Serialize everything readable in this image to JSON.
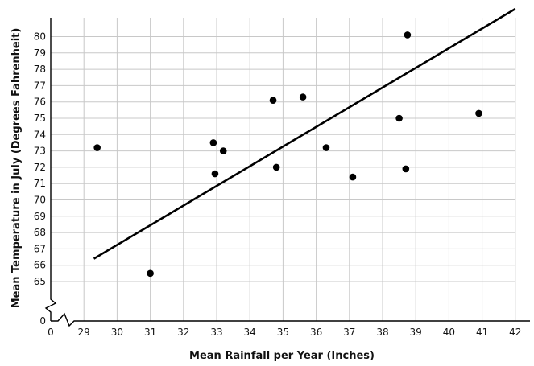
{
  "chart_data": {
    "type": "scatter",
    "title": "",
    "xlabel": "Mean Rainfall per Year (Inches)",
    "ylabel": "Mean Temperature in July (Degrees Fahrenheit)",
    "x_ticks": [
      "0",
      "29",
      "30",
      "31",
      "32",
      "33",
      "34",
      "35",
      "36",
      "37",
      "38",
      "39",
      "40",
      "41",
      "42"
    ],
    "y_ticks": [
      "0",
      "65",
      "66",
      "67",
      "68",
      "69",
      "70",
      "71",
      "72",
      "73",
      "74",
      "75",
      "76",
      "77",
      "78",
      "79",
      "80"
    ],
    "xlim": [
      29,
      42
    ],
    "ylim": [
      65,
      81
    ],
    "axis_breaks": [
      "x",
      "y"
    ],
    "grid": true,
    "points": [
      {
        "x": 29.4,
        "y": 73.2
      },
      {
        "x": 31.0,
        "y": 65.5
      },
      {
        "x": 32.9,
        "y": 73.5
      },
      {
        "x": 32.95,
        "y": 71.6
      },
      {
        "x": 33.2,
        "y": 73.0
      },
      {
        "x": 34.7,
        "y": 76.1
      },
      {
        "x": 34.8,
        "y": 72.0
      },
      {
        "x": 35.6,
        "y": 76.3
      },
      {
        "x": 36.3,
        "y": 73.2
      },
      {
        "x": 37.1,
        "y": 71.4
      },
      {
        "x": 38.5,
        "y": 75.0
      },
      {
        "x": 38.7,
        "y": 71.9
      },
      {
        "x": 38.75,
        "y": 80.1
      },
      {
        "x": 40.9,
        "y": 75.3
      }
    ],
    "trend_line": {
      "x1": 29.3,
      "y1": 66.4,
      "x2": 42.0,
      "y2": 81.7
    }
  }
}
